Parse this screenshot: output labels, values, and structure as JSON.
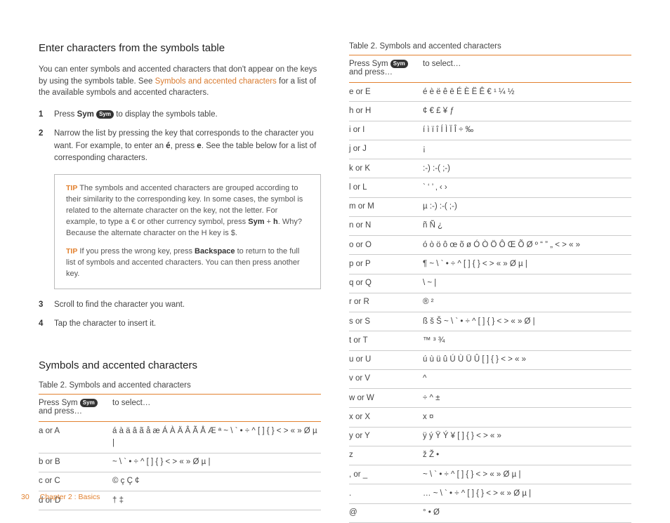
{
  "left": {
    "h1": "Enter characters from the symbols table",
    "intro_a": "You can enter symbols and accented characters that don't appear on the keys by using the symbols table. See ",
    "intro_link": "Symbols and accented characters",
    "intro_b": " for a list of the available symbols and accented characters.",
    "step1_pre": "Press ",
    "step1_bold": "Sym",
    "step1_badge": "Sym",
    "step1_post": " to display the symbols table.",
    "step2_a": "Narrow the list by pressing the key that corresponds to the character you want. For example, to enter an ",
    "step2_b1": "é",
    "step2_mid": ", press ",
    "step2_b2": "e",
    "step2_c": ". See the table below for a list of corresponding characters.",
    "tip1_a": " The symbols and accented characters are grouped according to their similarity to the corresponding key. In some cases, the symbol is related to the alternate character on the key, not the letter. For example, to type a € or other currency symbol, press ",
    "tip1_b1": "Sym",
    "tip1_mid": " + ",
    "tip1_b2": "h",
    "tip1_c": ". Why? Because the alternate character on the H key is $.",
    "tip2_a": " If you press the wrong key, press ",
    "tip2_b": "Backspace",
    "tip2_c": " to return to the full list of symbols and accented characters. You can then press another key.",
    "tip_label": "TIP",
    "step3": "Scroll to find the character you want.",
    "step4": "Tap the character to insert it.",
    "h2": "Symbols and accented characters",
    "caption": "Table 2.  Symbols and accented characters",
    "thA_a": "Press Sym ",
    "thA_b": " and press…",
    "thB": "to select…",
    "rowsL": [
      {
        "k": "a or A",
        "v": "á à ä â ã å æ Á À Ä Â Ã Å Æ ª ~ \\ ` • ÷ ^ [ ] { } < > « » Ø µ |"
      },
      {
        "k": "b or B",
        "v": "~ \\ ` • ÷ ^ [ ] { } < > « » Ø µ |"
      },
      {
        "k": "c or C",
        "v": "© ç Ç ¢"
      },
      {
        "k": "d or D",
        "v": "† ‡"
      }
    ]
  },
  "right": {
    "caption": "Table 2.  Symbols and accented characters",
    "thA_a": "Press Sym ",
    "thA_b": " and press…",
    "thB": "to select…",
    "rowsR": [
      {
        "k": "e or E",
        "v": "é è ë ê ē É È Ë Ê € ¹ ¼ ½"
      },
      {
        "k": "h or H",
        "v": "¢ € £ ¥ ƒ"
      },
      {
        "k": "i or I",
        "v": "í ì ï î Í Ì Ï Î ÷ ‰"
      },
      {
        "k": "j or J",
        "v": "¡"
      },
      {
        "k": "k or K",
        "v": ":-) :-( ;-)"
      },
      {
        "k": "l or L",
        "v": "` ‘ ’ ‚ ‹ ›"
      },
      {
        "k": "m or M",
        "v": "µ :-) :-( ;-)"
      },
      {
        "k": "n or N",
        "v": "ñ Ñ ¿"
      },
      {
        "k": "o or O",
        "v": "ó ò ö ô œ õ ø Ó Ò Ö Ô Œ Õ Ø º “ ” „ < > « »"
      },
      {
        "k": "p or P",
        "v": "¶ ~ \\ ` • ÷ ^ [ ] { } < > « » Ø µ |"
      },
      {
        "k": "q or Q",
        "v": "\\ ~ |"
      },
      {
        "k": "r or R",
        "v": "® ²"
      },
      {
        "k": "s or S",
        "v": "ß š Š ~ \\ ` • ÷ ^ [ ] { } < > « » Ø |"
      },
      {
        "k": "t or T",
        "v": "™ ³ ¾"
      },
      {
        "k": "u or U",
        "v": "ú ù ü û Ú Ù Ü Û [ ] { } < > « »"
      },
      {
        "k": "v or V",
        "v": "^"
      },
      {
        "k": "w or W",
        "v": "÷ ^ ±"
      },
      {
        "k": "x or X",
        "v": "x ¤"
      },
      {
        "k": "y or Y",
        "v": "ÿ ý Ÿ Ý ¥ [ ] { } < > « »"
      },
      {
        "k": "z",
        "v": "ž Ž •"
      },
      {
        "k": ", or  _",
        "v": "~ \\ ` • ÷ ^ [ ] { } < > « » Ø µ |"
      },
      {
        "k": ".",
        "v": "… ~ \\ ` • ÷ ^ [ ] { } < > « » Ø µ |"
      },
      {
        "k": "@",
        "v": "° • Ø"
      }
    ]
  },
  "footer": {
    "page": "30",
    "chapter": "Chapter 2  :  Basics"
  }
}
